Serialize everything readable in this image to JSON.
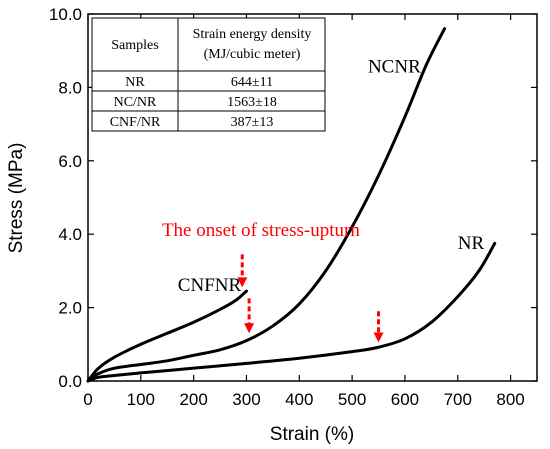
{
  "chart_data": {
    "type": "line",
    "title": "",
    "xlabel": "Strain (%)",
    "ylabel": "Stress (MPa)",
    "xlim": [
      0,
      850
    ],
    "ylim": [
      0,
      10
    ],
    "xticks": [
      "0",
      "100",
      "200",
      "300",
      "400",
      "500",
      "600",
      "700",
      "800"
    ],
    "yticks": [
      "0.0",
      "2.0",
      "4.0",
      "6.0",
      "8.0",
      "10.0"
    ],
    "grid": false,
    "series": [
      {
        "name": "CNFNR",
        "color": "#000000",
        "x": [
          0,
          20,
          50,
          100,
          150,
          200,
          250,
          280,
          300
        ],
        "y": [
          0,
          0.35,
          0.65,
          1.0,
          1.3,
          1.6,
          1.95,
          2.2,
          2.45
        ]
      },
      {
        "name": "NCNR",
        "color": "#000000",
        "x": [
          0,
          20,
          50,
          100,
          150,
          200,
          250,
          300,
          350,
          400,
          450,
          500,
          550,
          600,
          640,
          675
        ],
        "y": [
          0,
          0.2,
          0.35,
          0.45,
          0.55,
          0.7,
          0.85,
          1.1,
          1.5,
          2.1,
          3.0,
          4.2,
          5.6,
          7.2,
          8.6,
          9.6
        ]
      },
      {
        "name": "NR",
        "color": "#000000",
        "x": [
          0,
          20,
          50,
          100,
          200,
          300,
          400,
          500,
          550,
          600,
          650,
          700,
          740,
          770
        ],
        "y": [
          0,
          0.1,
          0.15,
          0.22,
          0.35,
          0.48,
          0.62,
          0.8,
          0.92,
          1.15,
          1.6,
          2.3,
          3.0,
          3.75
        ]
      }
    ],
    "curve_labels": [
      {
        "text": "CNFNR",
        "x": 170,
        "y": 2.45
      },
      {
        "text": "NCNR",
        "x": 530,
        "y": 8.4
      },
      {
        "text": "NR",
        "x": 700,
        "y": 3.6
      }
    ],
    "annotation": {
      "text": "The onset of stress-upturn",
      "text_x": 140,
      "text_y": 3.95,
      "color": "#ff0000",
      "arrows": [
        {
          "x": 292,
          "y_top": 3.45,
          "y_tip": 2.55
        },
        {
          "x": 305,
          "y_top": 2.25,
          "y_tip": 1.3
        },
        {
          "x": 550,
          "y_top": 1.9,
          "y_tip": 1.05
        }
      ]
    },
    "table": {
      "headers": [
        "Samples",
        "Strain energy density",
        "(MJ/cubic meter)"
      ],
      "rows": [
        [
          "NR",
          "644±11"
        ],
        [
          "NC/NR",
          "1563±18"
        ],
        [
          "CNF/NR",
          "387±13"
        ]
      ]
    }
  }
}
